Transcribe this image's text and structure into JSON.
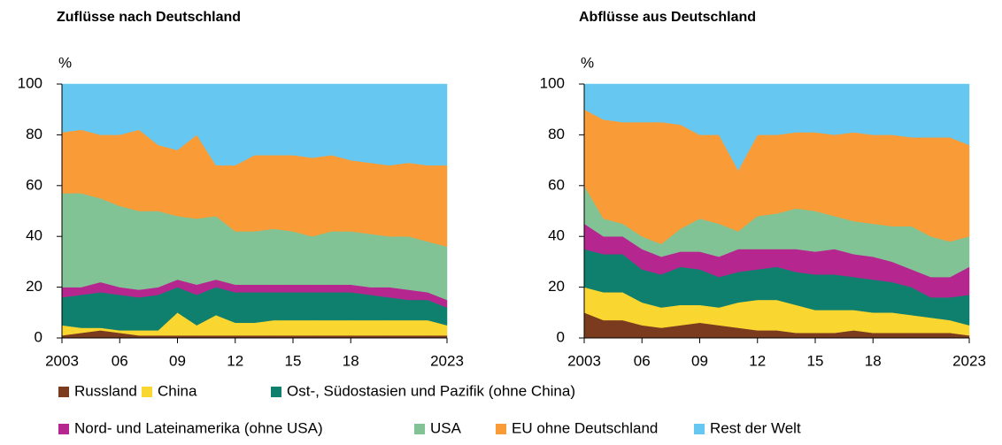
{
  "chart_data": [
    {
      "type": "stacked_area",
      "title": "Zuflüsse nach Deutschland",
      "y_label": "%",
      "x": [
        2003,
        2004,
        2005,
        2006,
        2007,
        2008,
        2009,
        2010,
        2011,
        2012,
        2013,
        2014,
        2015,
        2016,
        2017,
        2018,
        2019,
        2020,
        2021,
        2022,
        2023
      ],
      "xlim": [
        2003,
        2023
      ],
      "xticks": [
        {
          "value": 2003,
          "label": "2003"
        },
        {
          "value": 2006,
          "label": "06"
        },
        {
          "value": 2009,
          "label": "09"
        },
        {
          "value": 2012,
          "label": "12"
        },
        {
          "value": 2015,
          "label": "15"
        },
        {
          "value": 2018,
          "label": "18"
        },
        {
          "value": 2023,
          "label": "2023"
        }
      ],
      "ylim": [
        0,
        100
      ],
      "yticks": [
        0,
        20,
        40,
        60,
        80,
        100
      ],
      "series": [
        {
          "name": "Russland",
          "color": "#7b3b1e",
          "values": [
            1,
            2,
            3,
            2,
            1,
            1,
            1,
            1,
            1,
            1,
            1,
            1,
            1,
            1,
            1,
            1,
            1,
            1,
            1,
            1,
            1
          ]
        },
        {
          "name": "China",
          "color": "#f9d630",
          "values": [
            4,
            2,
            1,
            1,
            2,
            2,
            9,
            4,
            8,
            5,
            5,
            6,
            6,
            6,
            6,
            6,
            6,
            6,
            6,
            6,
            4
          ]
        },
        {
          "name": "Ost-, Südostasien und Pazifik (ohne China)",
          "color": "#0f7f6e",
          "values": [
            11,
            13,
            14,
            14,
            13,
            14,
            10,
            12,
            11,
            12,
            12,
            11,
            11,
            11,
            11,
            11,
            10,
            9,
            8,
            8,
            7
          ]
        },
        {
          "name": "Nord- und Lateinamerika (ohne USA)",
          "color": "#b5268f",
          "values": [
            4,
            3,
            4,
            3,
            3,
            3,
            3,
            4,
            3,
            3,
            3,
            3,
            3,
            3,
            3,
            3,
            3,
            4,
            4,
            3,
            3
          ]
        },
        {
          "name": "USA",
          "color": "#82c395",
          "values": [
            37,
            37,
            33,
            32,
            31,
            30,
            25,
            26,
            25,
            21,
            21,
            22,
            21,
            19,
            21,
            21,
            21,
            20,
            21,
            20,
            21
          ]
        },
        {
          "name": "EU ohne Deutschland",
          "color": "#f99b36",
          "values": [
            24,
            25,
            25,
            28,
            32,
            26,
            26,
            33,
            20,
            26,
            30,
            29,
            30,
            31,
            30,
            28,
            28,
            28,
            29,
            30,
            32
          ]
        },
        {
          "name": "Rest der Welt",
          "color": "#66c8f0",
          "values": [
            19,
            18,
            20,
            20,
            18,
            24,
            26,
            20,
            32,
            32,
            28,
            28,
            28,
            29,
            28,
            30,
            31,
            32,
            31,
            32,
            32
          ]
        }
      ]
    },
    {
      "type": "stacked_area",
      "title": "Abflüsse aus Deutschland",
      "y_label": "%",
      "x": [
        2003,
        2004,
        2005,
        2006,
        2007,
        2008,
        2009,
        2010,
        2011,
        2012,
        2013,
        2014,
        2015,
        2016,
        2017,
        2018,
        2019,
        2020,
        2021,
        2022,
        2023
      ],
      "xlim": [
        2003,
        2023
      ],
      "xticks": [
        {
          "value": 2003,
          "label": "2003"
        },
        {
          "value": 2006,
          "label": "06"
        },
        {
          "value": 2009,
          "label": "09"
        },
        {
          "value": 2012,
          "label": "12"
        },
        {
          "value": 2015,
          "label": "15"
        },
        {
          "value": 2018,
          "label": "18"
        },
        {
          "value": 2023,
          "label": "2023"
        }
      ],
      "ylim": [
        0,
        100
      ],
      "yticks": [
        0,
        20,
        40,
        60,
        80,
        100
      ],
      "series": [
        {
          "color": "#7b3b1e",
          "values": [
            10,
            7,
            7,
            5,
            4,
            5,
            6,
            5,
            4,
            3,
            3,
            2,
            2,
            2,
            3,
            2,
            2,
            2,
            2,
            2,
            1
          ]
        },
        {
          "color": "#f9d630",
          "values": [
            10,
            11,
            11,
            9,
            8,
            8,
            7,
            7,
            10,
            12,
            12,
            11,
            9,
            9,
            8,
            8,
            8,
            7,
            6,
            5,
            4
          ]
        },
        {
          "color": "#0f7f6e",
          "values": [
            15,
            15,
            15,
            13,
            13,
            15,
            14,
            12,
            12,
            12,
            13,
            13,
            14,
            14,
            13,
            13,
            12,
            11,
            8,
            9,
            12
          ]
        },
        {
          "color": "#b5268f",
          "values": [
            10,
            7,
            7,
            8,
            7,
            6,
            7,
            8,
            9,
            8,
            7,
            9,
            9,
            10,
            9,
            9,
            8,
            7,
            8,
            8,
            11
          ]
        },
        {
          "color": "#82c395",
          "values": [
            15,
            7,
            5,
            5,
            5,
            9,
            13,
            13,
            7,
            13,
            14,
            16,
            16,
            13,
            13,
            13,
            14,
            17,
            16,
            14,
            12
          ]
        },
        {
          "color": "#f99b36",
          "values": [
            30,
            39,
            40,
            45,
            48,
            41,
            33,
            35,
            24,
            32,
            31,
            30,
            31,
            32,
            35,
            35,
            36,
            35,
            39,
            41,
            36
          ]
        },
        {
          "color": "#66c8f0",
          "values": [
            10,
            14,
            15,
            15,
            15,
            16,
            20,
            20,
            34,
            20,
            20,
            19,
            19,
            20,
            19,
            20,
            20,
            21,
            21,
            21,
            24
          ]
        }
      ]
    }
  ]
}
